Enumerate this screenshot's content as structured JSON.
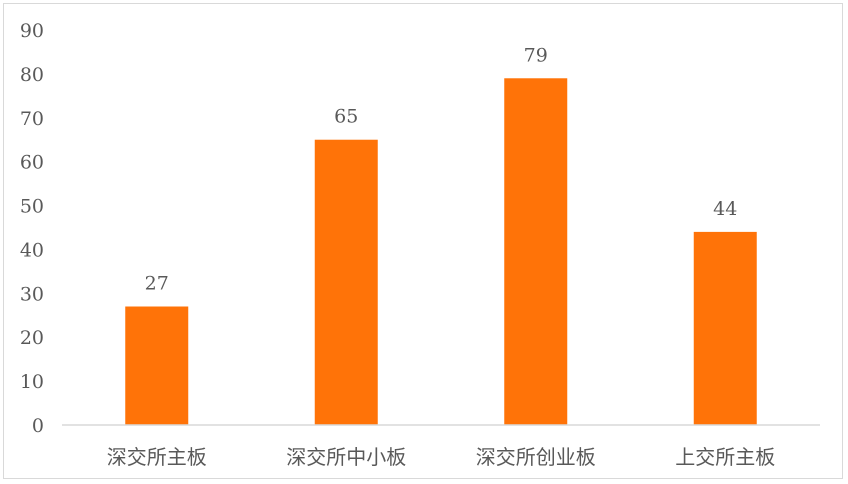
{
  "chart_data": {
    "type": "bar",
    "title": "",
    "xlabel": "",
    "ylabel": "",
    "categories": [
      "深交所主板",
      "深交所中小板",
      "深交所创业板",
      "上交所主板"
    ],
    "values": [
      27,
      65,
      79,
      44
    ],
    "ylim": [
      0,
      90
    ],
    "yticks": [
      0,
      10,
      20,
      30,
      40,
      50,
      60,
      70,
      80,
      90
    ],
    "grid": false,
    "legend": "none",
    "data_labels": true,
    "colors": {
      "bar": "#FF7308",
      "axis": "#d9d9d9",
      "text": "#595959"
    }
  }
}
